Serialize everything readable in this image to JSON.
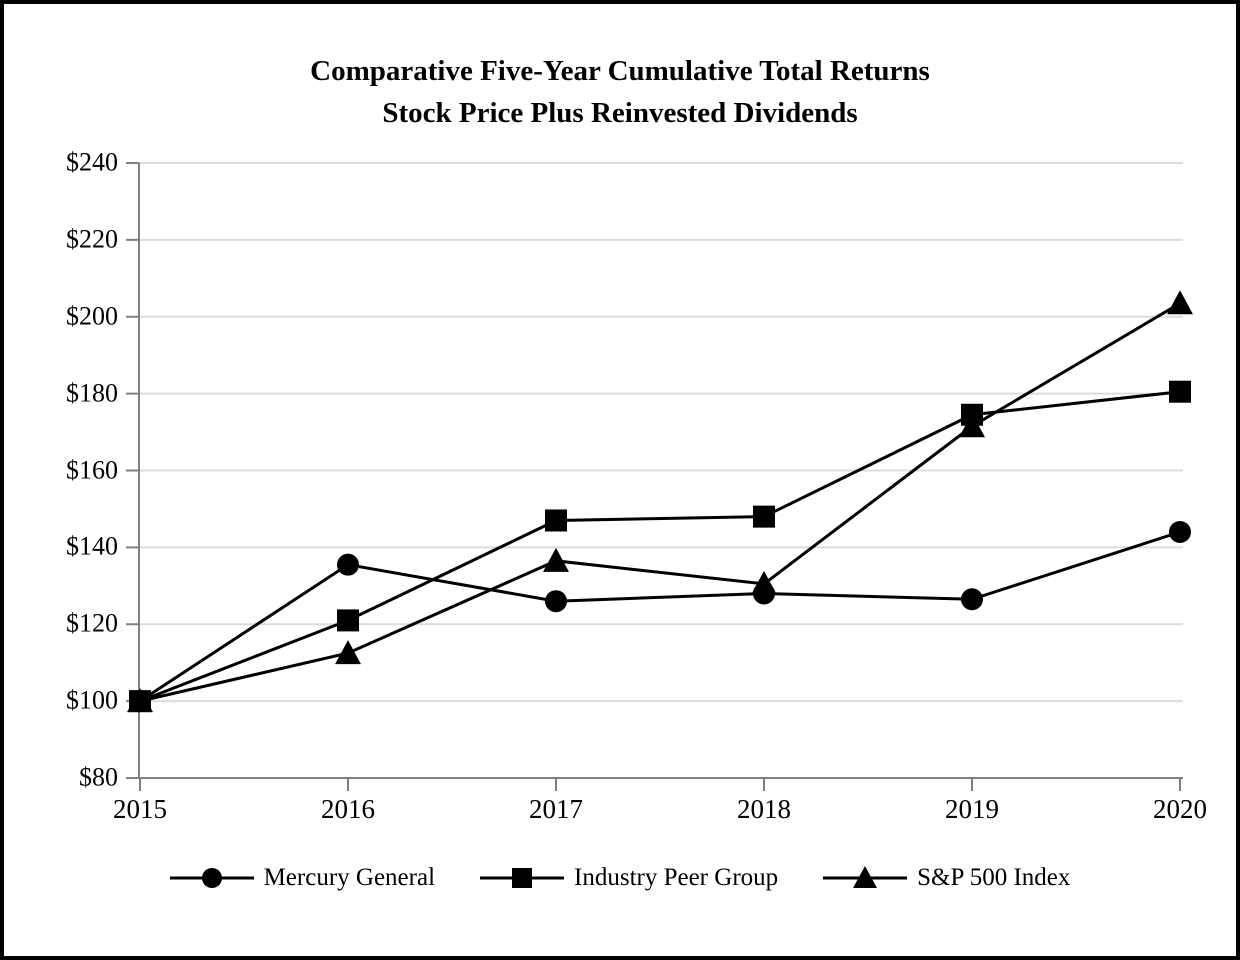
{
  "chart": {
    "title_line1": "Comparative Five-Year Cumulative Total Returns",
    "title_line2": "Stock Price Plus Reinvested Dividends"
  },
  "chart_data": {
    "type": "line",
    "title": "Comparative Five-Year Cumulative Total Returns — Stock Price Plus Reinvested Dividends",
    "x": [
      "2015",
      "2016",
      "2017",
      "2018",
      "2019",
      "2020"
    ],
    "series": [
      {
        "name": "Mercury General",
        "marker": "circle",
        "values": [
          100,
          135.5,
          126,
          128,
          126.5,
          144
        ]
      },
      {
        "name": "Industry Peer Group",
        "marker": "square",
        "values": [
          100,
          121,
          147,
          148,
          174.5,
          180.5
        ]
      },
      {
        "name": "S&P 500 Index",
        "marker": "triangle",
        "values": [
          100,
          112.5,
          136.5,
          130.5,
          171.5,
          203.5
        ]
      }
    ],
    "xlabel": "",
    "ylabel": "",
    "ylim": [
      80,
      240
    ],
    "y_tick_step": 20,
    "y_tick_prefix": "$",
    "grid": true,
    "legend_position": "bottom",
    "colors": {
      "series": "#000000",
      "grid": "#dcdcdc",
      "axis": "#808080",
      "text": "#000000",
      "background": "#ffffff",
      "border": "#000000"
    }
  }
}
